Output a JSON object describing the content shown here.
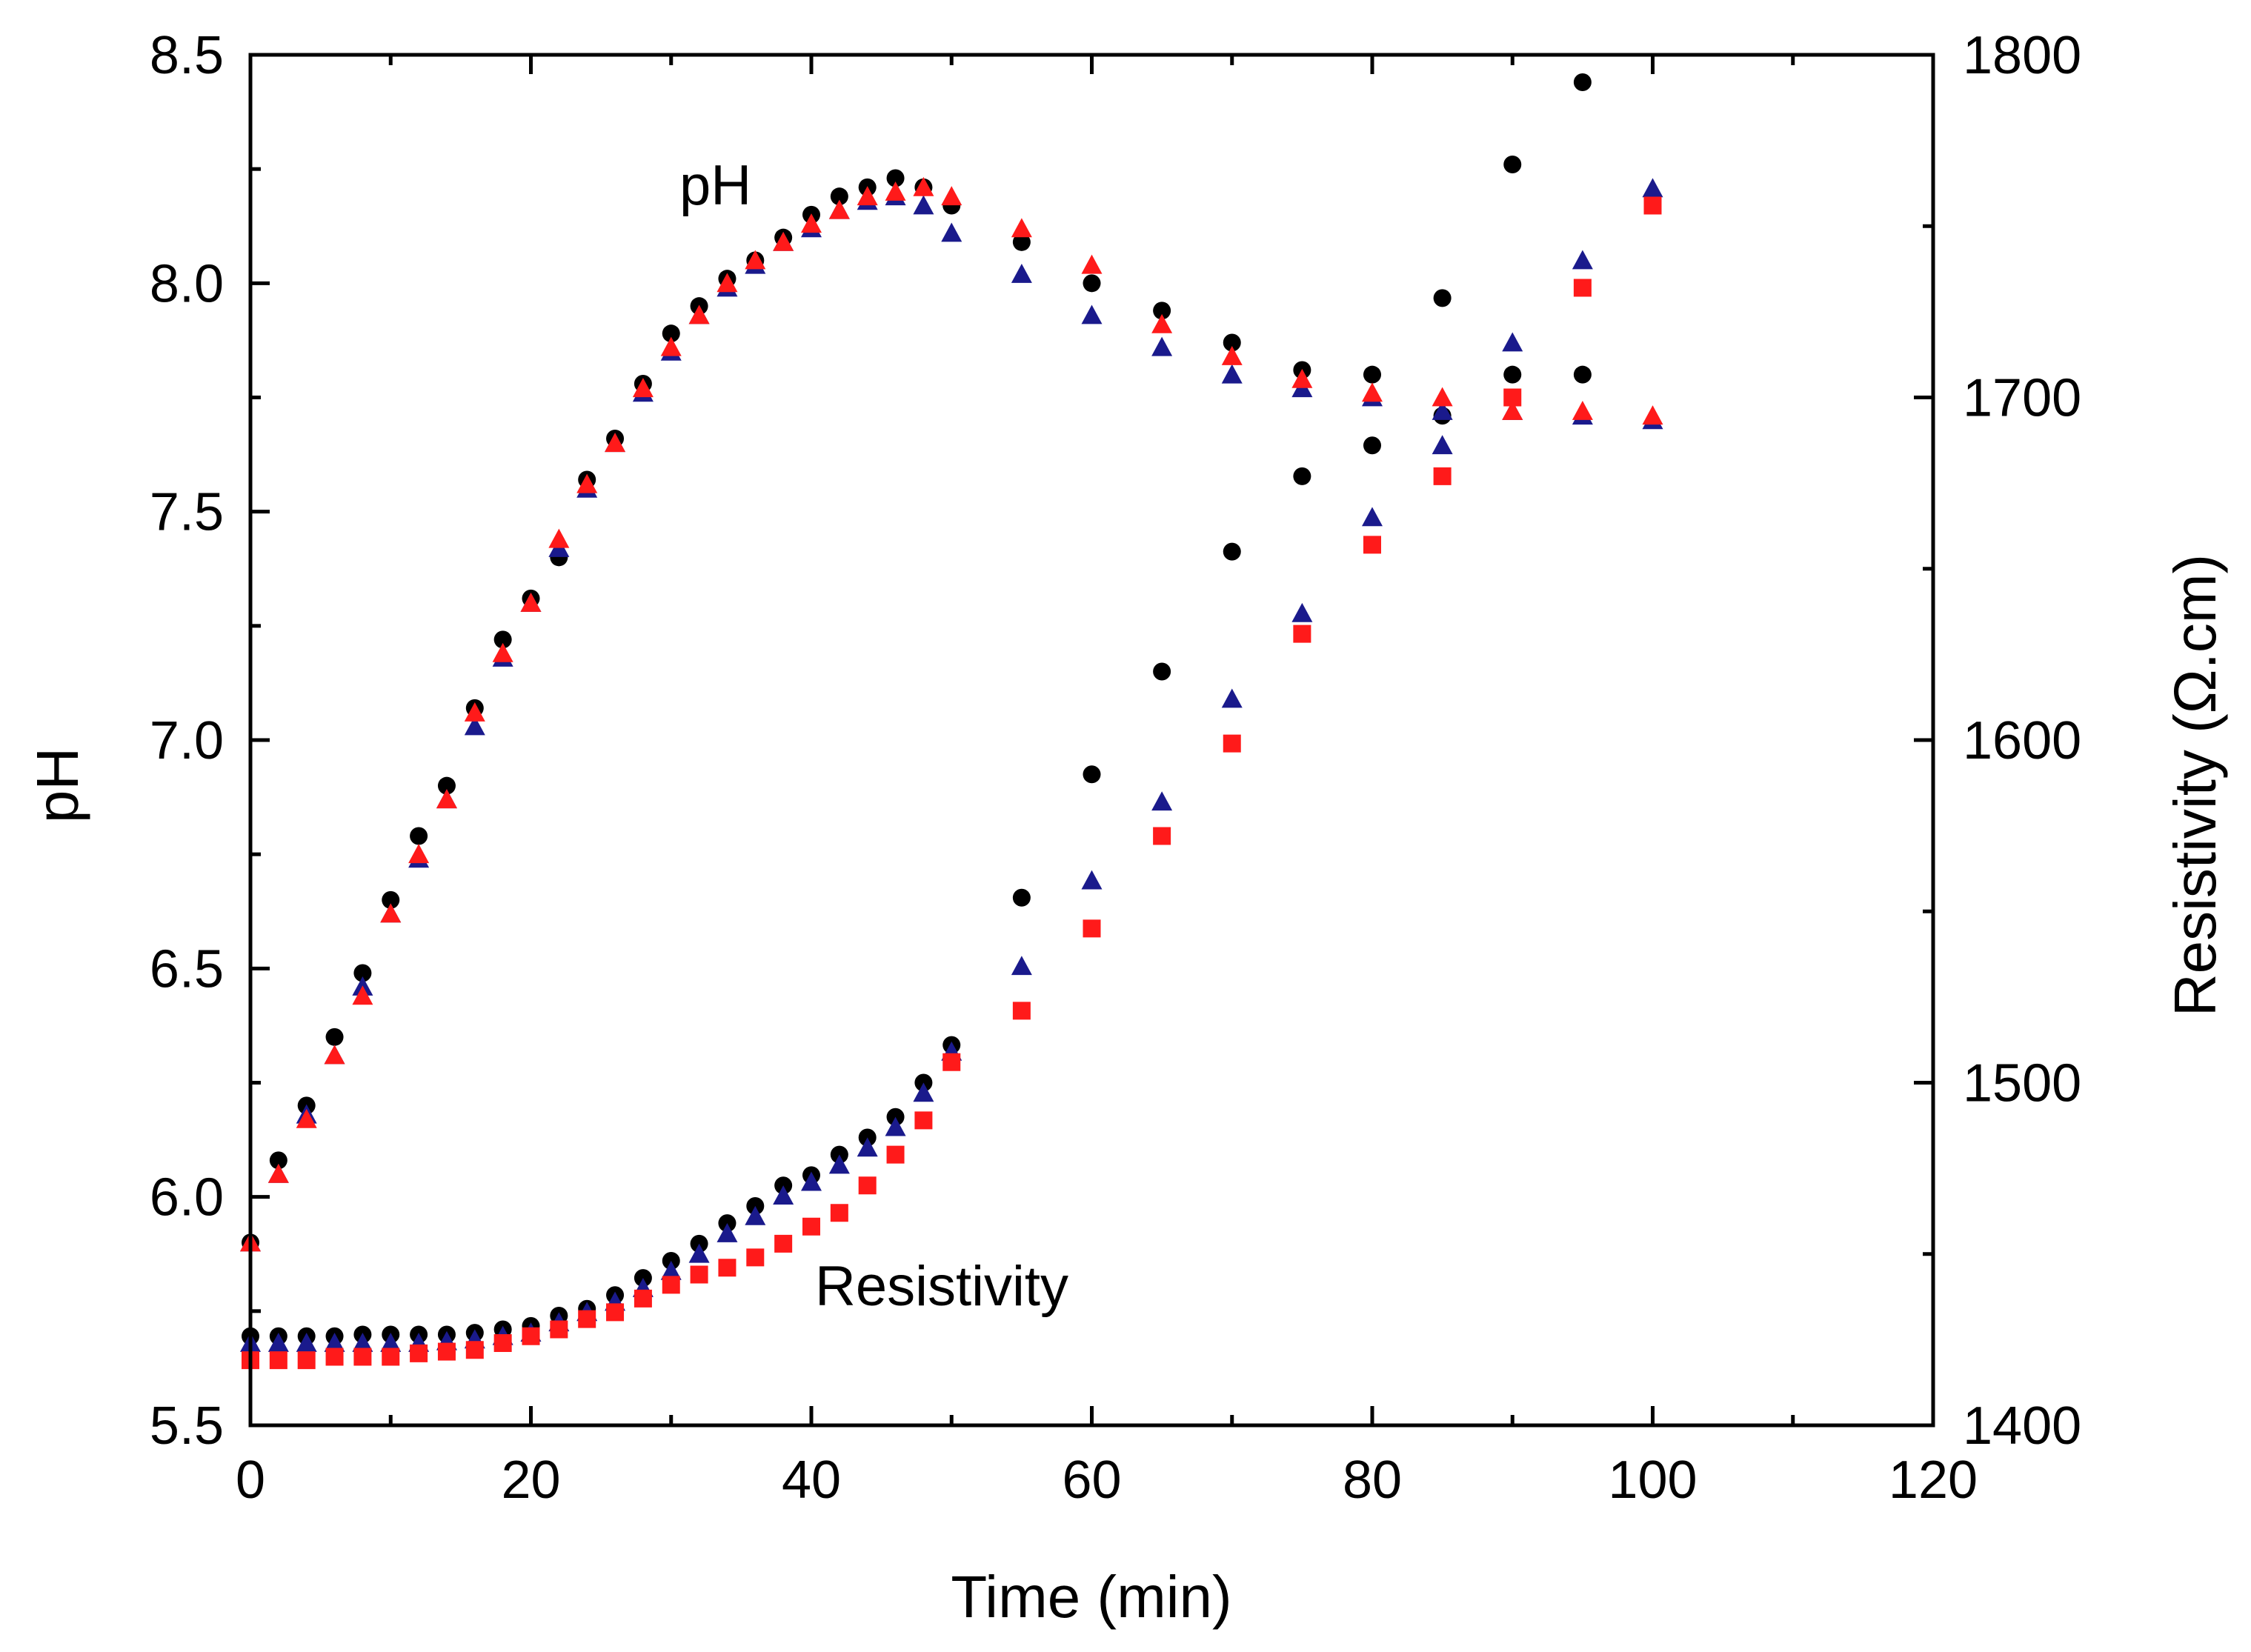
{
  "chart_data": {
    "type": "scatter",
    "xlabel": "Time (min)",
    "ylabel_left": "pH",
    "ylabel_right": "Resistivity (Ω.cm)",
    "xlim": [
      0,
      120
    ],
    "ylim_left": [
      5.5,
      8.5
    ],
    "ylim_right": [
      1400,
      1800
    ],
    "x_ticks": [
      "0",
      "20",
      "40",
      "60",
      "80",
      "100",
      "120"
    ],
    "y_left_ticks": [
      "5.5",
      "6.0",
      "6.5",
      "7.0",
      "7.5",
      "8.0",
      "8.5"
    ],
    "y_right_ticks": [
      "1400",
      "1500",
      "1600",
      "1700",
      "1800"
    ],
    "annotations": [
      {
        "text": "pH",
        "x": 33.5,
        "y_left": 8.18
      },
      {
        "text": "Resistivity",
        "x": 50.5,
        "y_left": 5.69
      }
    ],
    "colors": {
      "series_1": "#000000",
      "series_2": "#1a1a8c",
      "series_3": "#ff1a1a"
    },
    "x": [
      0,
      2,
      4,
      6,
      8,
      10,
      12,
      14,
      16,
      18,
      20,
      22,
      24,
      26,
      28,
      30,
      32,
      34,
      36,
      38,
      40,
      42,
      44,
      46,
      48,
      50,
      55,
      60,
      65,
      70,
      75,
      80,
      85,
      90,
      95,
      100
    ],
    "series": [
      {
        "name": "pH (circles)",
        "marker": "circle",
        "axis": "left",
        "values": [
          5.9,
          6.08,
          6.2,
          6.35,
          6.49,
          6.65,
          6.79,
          6.9,
          7.07,
          7.22,
          7.31,
          7.4,
          7.57,
          7.66,
          7.78,
          7.89,
          7.95,
          8.01,
          8.05,
          8.1,
          8.15,
          8.19,
          8.21,
          8.23,
          8.21,
          8.17,
          8.09,
          8.0,
          7.94,
          7.87,
          7.81,
          7.8,
          7.71,
          7.8,
          7.8,
          null
        ]
      },
      {
        "name": "pH (triangles)",
        "marker": "triangle",
        "axis": "left",
        "values": [
          5.9,
          6.05,
          6.18,
          6.31,
          6.46,
          6.62,
          6.74,
          6.87,
          7.03,
          7.18,
          7.3,
          7.42,
          7.55,
          7.65,
          7.76,
          7.85,
          7.93,
          7.99,
          8.04,
          8.09,
          8.12,
          8.16,
          8.18,
          8.19,
          8.17,
          8.11,
          8.02,
          7.93,
          7.86,
          7.8,
          7.77,
          7.75,
          7.72,
          7.72,
          7.71,
          7.7
        ]
      },
      {
        "name": "pH (red triangles)",
        "marker": "triangle",
        "axis": "left",
        "values": [
          5.9,
          6.05,
          6.17,
          6.31,
          6.44,
          6.62,
          6.75,
          6.87,
          7.06,
          7.19,
          7.3,
          7.44,
          7.56,
          7.65,
          7.77,
          7.86,
          7.93,
          8.0,
          8.05,
          8.09,
          8.13,
          8.16,
          8.19,
          8.2,
          8.21,
          8.19,
          8.12,
          8.04,
          7.91,
          7.84,
          7.79,
          7.76,
          7.75,
          7.72,
          7.72,
          7.71
        ]
      },
      {
        "name": "Resistivity (circles)",
        "marker": "circle",
        "axis": "right",
        "values": [
          1426,
          1426,
          1426,
          1426,
          1426.5,
          1426.5,
          1426.5,
          1426.5,
          1427,
          1428,
          1429,
          1432,
          1434,
          1438,
          1443,
          1448,
          1453,
          1459,
          1464,
          1470,
          1473,
          1479,
          1484,
          1490,
          1500,
          1511,
          1554,
          1590,
          1620,
          1655,
          1677,
          1686,
          1729,
          1768,
          1792,
          null
        ]
      },
      {
        "name": "Resistivity (triangles)",
        "marker": "triangle",
        "axis": "right",
        "values": [
          1424,
          1424,
          1424,
          1424,
          1424,
          1424,
          1424,
          1424.5,
          1425,
          1426,
          1427,
          1430,
          1433,
          1436,
          1440,
          1445,
          1450,
          1456,
          1461,
          1467,
          1471,
          1476,
          1481,
          1487,
          1497,
          1509,
          1534,
          1559,
          1582,
          1612,
          1637,
          1665,
          1686,
          1716,
          1740,
          1761
        ]
      },
      {
        "name": "Resistivity (squares)",
        "marker": "square",
        "axis": "right",
        "values": [
          1419,
          1419,
          1419,
          1420,
          1420,
          1420,
          1421,
          1421.5,
          1422,
          1424,
          1426,
          1428,
          1431,
          1433,
          1437,
          1441,
          1444,
          1446,
          1449,
          1453,
          1458,
          1462,
          1470,
          1479,
          1489,
          1506,
          1521,
          1545,
          1572,
          1599,
          1631,
          1657,
          1677,
          1700,
          1732,
          1756
        ]
      }
    ]
  }
}
